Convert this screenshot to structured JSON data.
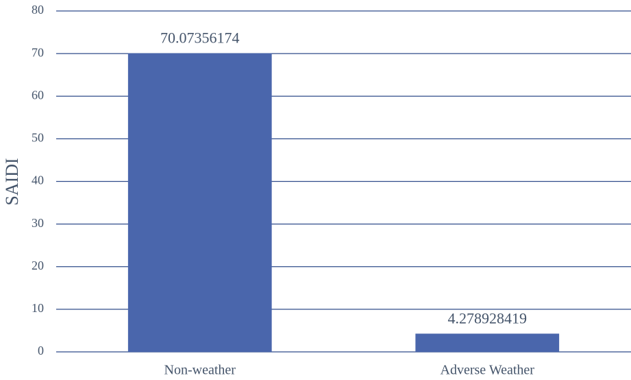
{
  "chart_data": {
    "type": "bar",
    "y_label": "SAIDI",
    "categories": [
      "Non-weather",
      "Adverse Weather"
    ],
    "values": [
      70.07356174,
      4.278928419
    ],
    "color": "#4a66ac",
    "ylim": [
      0,
      80
    ],
    "yticks": [
      0,
      10,
      20,
      30,
      40,
      50,
      60,
      70,
      80
    ],
    "grid": true
  }
}
